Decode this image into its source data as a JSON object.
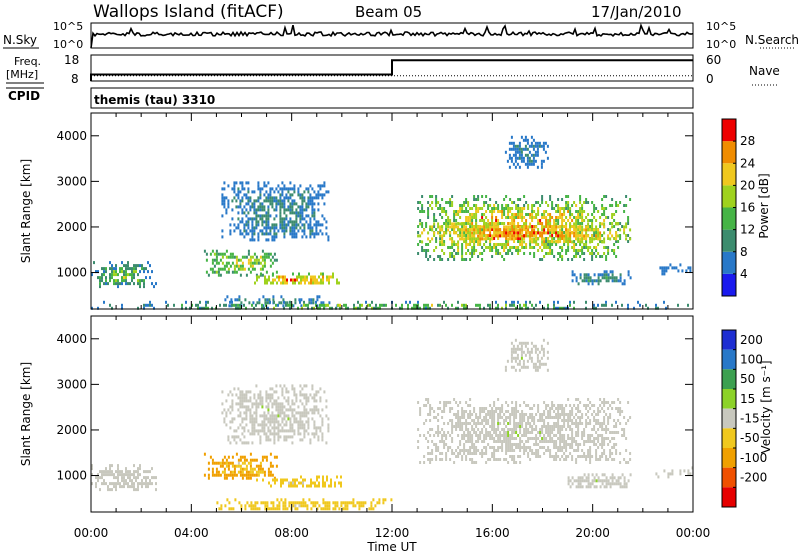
{
  "header": {
    "station": "Wallops Island (fitACF)",
    "beam": "Beam 05",
    "date": "17/Jan/2010"
  },
  "sky_panel": {
    "left_label": "N.Sky",
    "right_label": "N.Search",
    "y_ticks": [
      "10^5",
      "10^0"
    ]
  },
  "freq_panel": {
    "left_label_line1": "Freq.",
    "left_label_line2": "[MHz]",
    "right_label": "Nave",
    "left_ticks": [
      "18",
      "8"
    ],
    "right_ticks": [
      "60",
      "0"
    ],
    "freq_step": {
      "before": 10.5,
      "after": 16.0,
      "switch_hour": 12.0
    },
    "nave": 12
  },
  "cpid_panel": {
    "label": "CPID",
    "program": "themis (tau) 3310"
  },
  "x_axis": {
    "title": "Time UT",
    "ticks": [
      "00:00",
      "04:00",
      "08:00",
      "12:00",
      "16:00",
      "20:00",
      "00:00"
    ]
  },
  "power_panel": {
    "ylabel": "Slant Range [km]",
    "y_ticks": [
      "1000",
      "2000",
      "3000",
      "4000"
    ],
    "colorbar_title": "Power [dB]",
    "colorbar_ticks": [
      "4",
      "8",
      "12",
      "16",
      "20",
      "24",
      "28"
    ],
    "colors": [
      "#1a1aee",
      "#2878c8",
      "#3c8c6e",
      "#46b446",
      "#9fd21e",
      "#f0c81e",
      "#f08c00",
      "#ee0000"
    ]
  },
  "velocity_panel": {
    "ylabel": "Slant Range [km]",
    "y_ticks": [
      "1000",
      "2000",
      "3000",
      "4000"
    ],
    "colorbar_title": "Velocity [m s⁻¹]",
    "colorbar_ticks": [
      "200",
      "100",
      "50",
      "15",
      "-15",
      "-50",
      "-100",
      "-200"
    ],
    "colors": [
      "#1e2ed2",
      "#2878c8",
      "#3ca050",
      "#8cd228",
      "#c8c8be",
      "#f0c81e",
      "#f0a000",
      "#f05000",
      "#e60000"
    ]
  },
  "chart_data": {
    "type": "heatmap",
    "x_unit": "hour UT",
    "y_unit": "slant range km",
    "xlim": [
      0,
      24
    ],
    "ylim": [
      200,
      4500
    ],
    "power_regions": [
      {
        "t0": 0.0,
        "t1": 2.6,
        "r0": 700,
        "r1": 1250,
        "pmin": 4,
        "pmax": 20
      },
      {
        "t0": 4.5,
        "t1": 7.5,
        "r0": 950,
        "r1": 1500,
        "pmin": 8,
        "pmax": 24
      },
      {
        "t0": 6.5,
        "t1": 10.0,
        "r0": 750,
        "r1": 1000,
        "pmin": 12,
        "pmax": 30
      },
      {
        "t0": 5.0,
        "t1": 9.8,
        "r0": 300,
        "r1": 500,
        "pmin": 4,
        "pmax": 12
      },
      {
        "t0": 5.2,
        "t1": 9.5,
        "r0": 1700,
        "r1": 3000,
        "pmin": 4,
        "pmax": 12
      },
      {
        "t0": 13.0,
        "t1": 21.5,
        "r0": 1300,
        "r1": 2700,
        "pmin": 8,
        "pmax": 30
      },
      {
        "t0": 13.0,
        "t1": 21.5,
        "r0": 1700,
        "r1": 2100,
        "pmin": 16,
        "pmax": 30
      },
      {
        "t0": 16.5,
        "t1": 18.2,
        "r0": 3300,
        "r1": 4000,
        "pmin": 4,
        "pmax": 10
      },
      {
        "t0": 19.0,
        "t1": 21.5,
        "r0": 750,
        "r1": 1050,
        "pmin": 4,
        "pmax": 14
      },
      {
        "t0": 22.5,
        "t1": 24.0,
        "r0": 1000,
        "r1": 1200,
        "pmin": 4,
        "pmax": 8
      },
      {
        "t0": 0.0,
        "t1": 24.0,
        "r0": 200,
        "r1": 380,
        "pmin": 4,
        "pmax": 20
      }
    ],
    "velocity_regions": [
      {
        "t0": 0.0,
        "t1": 2.6,
        "r0": 700,
        "r1": 1250,
        "vmin": -15,
        "vmax": 15
      },
      {
        "t0": 4.5,
        "t1": 7.5,
        "r0": 950,
        "r1": 1500,
        "vmin": -100,
        "vmax": -15
      },
      {
        "t0": 6.5,
        "t1": 10.0,
        "r0": 750,
        "r1": 1000,
        "vmin": -50,
        "vmax": -15
      },
      {
        "t0": 5.0,
        "t1": 12.0,
        "r0": 250,
        "r1": 500,
        "vmin": -50,
        "vmax": -15
      },
      {
        "t0": 5.2,
        "t1": 9.5,
        "r0": 1700,
        "r1": 3000,
        "vmin": -15,
        "vmax": 15
      },
      {
        "t0": 13.0,
        "t1": 21.5,
        "r0": 1300,
        "r1": 2700,
        "vmin": -15,
        "vmax": 15
      },
      {
        "t0": 16.5,
        "t1": 18.2,
        "r0": 3300,
        "r1": 4000,
        "vmin": -15,
        "vmax": 15
      },
      {
        "t0": 19.0,
        "t1": 21.5,
        "r0": 750,
        "r1": 1050,
        "vmin": -15,
        "vmax": 15
      },
      {
        "t0": 22.5,
        "t1": 24.0,
        "r0": 1000,
        "r1": 1200,
        "vmin": -15,
        "vmax": 15
      }
    ]
  }
}
